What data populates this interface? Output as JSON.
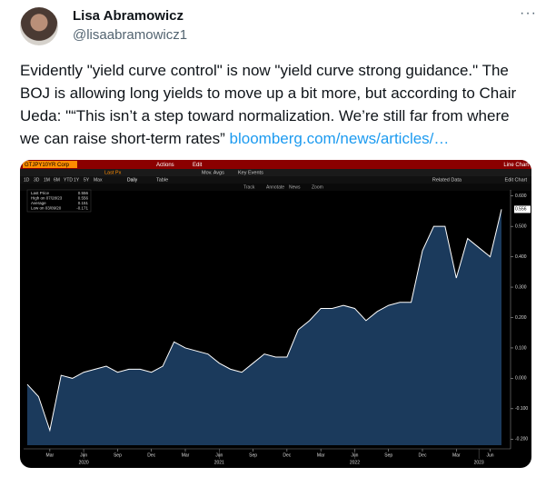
{
  "author": {
    "name": "Lisa Abramowicz",
    "handle": "@lisaabramowicz1"
  },
  "tweet": {
    "lines": [
      "Evidently \"yield curve control\" is now \"yield curve strong guidance.\" The",
      "BOJ is allowing long yields to move up a bit more, but according to Chair",
      "Ueda: \"“This isn’t a step toward normalization. We’re still far from where",
      "we can raise short-term rates”"
    ],
    "link": "bloomberg.com/news/articles/…"
  },
  "toolbar": {
    "ticker": "GTJPY10YR Corp",
    "actions": "Actions",
    "edit": "Edit",
    "mode": "Line Chart",
    "field": "Last Px",
    "studies": "Mov. Avgs",
    "events": "Key Events",
    "ranges": [
      "1D",
      "3D",
      "1M",
      "6M",
      "YTD",
      "1Y",
      "5Y",
      "Max"
    ],
    "freq": "Daily",
    "table": "Table",
    "tools": [
      "Track",
      "Annotate",
      "News",
      "Zoom"
    ],
    "related": "Related Data",
    "edit_chart": "Edit Chart"
  },
  "chart_data": {
    "type": "area",
    "color": "#ffffff",
    "fill": "#1b3a5c",
    "legend": [
      {
        "label": "Last Price",
        "value": 0.556
      },
      {
        "label": "High on 07/28/23",
        "value": 0.556
      },
      {
        "label": "Average",
        "value": 0.151
      },
      {
        "label": "Low on 03/09/20",
        "value": -0.171
      }
    ],
    "x": [
      "2020-01",
      "2020-02",
      "2020-03",
      "2020-04",
      "2020-05",
      "2020-06",
      "2020-07",
      "2020-08",
      "2020-09",
      "2020-10",
      "2020-11",
      "2020-12",
      "2021-01",
      "2021-02",
      "2021-03",
      "2021-04",
      "2021-05",
      "2021-06",
      "2021-07",
      "2021-08",
      "2021-09",
      "2021-10",
      "2021-11",
      "2021-12",
      "2022-01",
      "2022-02",
      "2022-03",
      "2022-04",
      "2022-05",
      "2022-06",
      "2022-07",
      "2022-08",
      "2022-09",
      "2022-10",
      "2022-11",
      "2022-12",
      "2023-01",
      "2023-02",
      "2023-03",
      "2023-04",
      "2023-05",
      "2023-06",
      "2023-07"
    ],
    "values": [
      -0.02,
      -0.06,
      -0.171,
      0.01,
      0.0,
      0.02,
      0.03,
      0.04,
      0.02,
      0.03,
      0.03,
      0.02,
      0.04,
      0.12,
      0.1,
      0.09,
      0.08,
      0.05,
      0.03,
      0.02,
      0.05,
      0.08,
      0.07,
      0.07,
      0.16,
      0.19,
      0.23,
      0.23,
      0.24,
      0.23,
      0.19,
      0.22,
      0.24,
      0.25,
      0.25,
      0.42,
      0.5,
      0.5,
      0.33,
      0.46,
      0.43,
      0.4,
      0.556
    ],
    "ylim": [
      -0.22,
      0.62
    ],
    "yticks": [
      {
        "value": 0.6,
        "label": "0.600"
      },
      {
        "value": 0.5,
        "label": "0.500"
      },
      {
        "value": 0.4,
        "label": "0.400"
      },
      {
        "value": 0.3,
        "label": "0.300"
      },
      {
        "value": 0.2,
        "label": "0.200"
      },
      {
        "value": 0.1,
        "label": "0.100"
      },
      {
        "value": 0,
        "label": "0.000"
      },
      {
        "value": -0.1,
        "label": "-0.100"
      },
      {
        "value": -0.2,
        "label": "-0.200"
      }
    ],
    "xticks": [
      {
        "value": "2020-03",
        "label": "Mar"
      },
      {
        "value": "2020-06",
        "label": "Jun"
      },
      {
        "value": "2020-09",
        "label": "Sep"
      },
      {
        "value": "2020-12",
        "label": "Dec"
      },
      {
        "value": "2021-03",
        "label": "Mar"
      },
      {
        "value": "2021-06",
        "label": "Jun"
      },
      {
        "value": "2021-09",
        "label": "Sep"
      },
      {
        "value": "2021-12",
        "label": "Dec"
      },
      {
        "value": "2022-03",
        "label": "Mar"
      },
      {
        "value": "2022-06",
        "label": "Jun"
      },
      {
        "value": "2022-09",
        "label": "Sep"
      },
      {
        "value": "2022-12",
        "label": "Dec"
      },
      {
        "value": "2023-03",
        "label": "Mar"
      },
      {
        "value": "2023-06",
        "label": "Jun"
      }
    ],
    "year_ticks": [
      {
        "value": "2020-06",
        "label": "2020"
      },
      {
        "value": "2021-06",
        "label": "2021"
      },
      {
        "value": "2022-06",
        "label": "2022"
      },
      {
        "value": "2023-05",
        "label": "2023"
      }
    ]
  }
}
